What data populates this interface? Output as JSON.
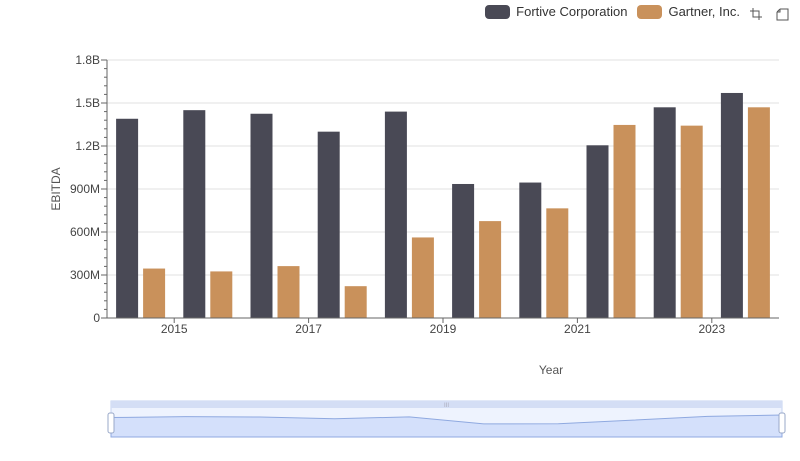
{
  "chart_data": {
    "type": "bar",
    "x": [
      2014,
      2015,
      2016,
      2017,
      2018,
      2019,
      2020,
      2021,
      2022,
      2023
    ],
    "tick_labels": [
      "2015",
      "2017",
      "2019",
      "2021",
      "2023"
    ],
    "xlabel": "Year",
    "ylabel": "EBITDA",
    "ylim": [
      0,
      1800000000
    ],
    "yticks": [
      {
        "value": 0,
        "label": "0"
      },
      {
        "value": 300000000,
        "label": "300M"
      },
      {
        "value": 600000000,
        "label": "600M"
      },
      {
        "value": 900000000,
        "label": "900M"
      },
      {
        "value": 1200000000,
        "label": "1.2B"
      },
      {
        "value": 1500000000,
        "label": "1.5B"
      },
      {
        "value": 1800000000,
        "label": "1.8B"
      }
    ],
    "series": [
      {
        "name": "Fortive Corporation",
        "color": "#494955",
        "values": [
          1390000000,
          1450000000,
          1425000000,
          1300000000,
          1440000000,
          935000000,
          945000000,
          1205000000,
          1470000000,
          1570000000
        ]
      },
      {
        "name": "Gartner, Inc.",
        "color": "#c9915b",
        "values": [
          345000000,
          325000000,
          362000000,
          222000000,
          562000000,
          676000000,
          765000000,
          1347000000,
          1342000000,
          1470000000
        ]
      }
    ],
    "grid": true,
    "legend_position": "top-right",
    "data_zoom": {
      "overview": [
        1390000000,
        1450000000,
        1425000000,
        1300000000,
        1440000000,
        935000000,
        945000000,
        1205000000,
        1470000000,
        1570000000
      ],
      "handle_label": "III"
    }
  },
  "colors": {
    "grid": "#e0e0e0",
    "axis": "#333333",
    "zoom_fill": "#d4e0fb",
    "zoom_line": "#8fa9e0"
  },
  "icons": [
    "zoom-icon",
    "restore-icon"
  ]
}
